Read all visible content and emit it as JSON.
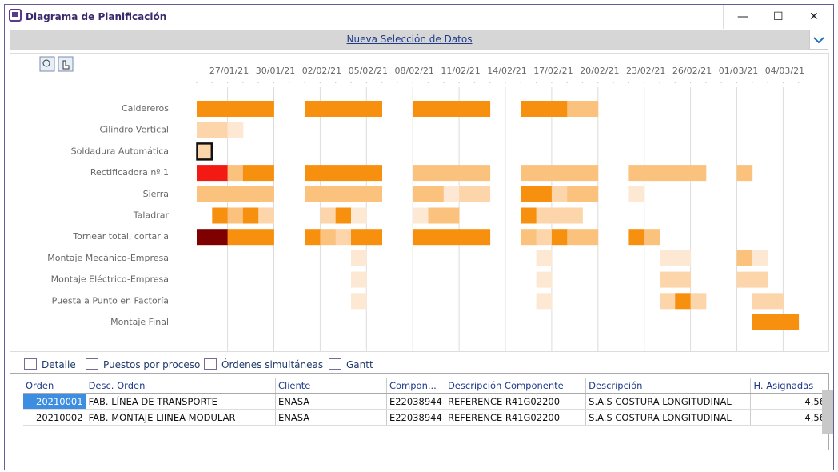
{
  "window": {
    "title": "Diagrama de  Planificación",
    "link": "Nueva Selección de Datos"
  },
  "gantt": {
    "dates": [
      "27/01/21",
      "30/01/21",
      "02/02/21",
      "05/02/21",
      "08/02/21",
      "11/02/21",
      "14/02/21",
      "17/02/21",
      "20/02/21",
      "23/02/21",
      "26/02/21",
      "01/03/21",
      "04/03/21"
    ],
    "level_colors": [
      "#fde9d3",
      "#fcd6aa",
      "#fbc27d",
      "#f7900f",
      "#f21a12",
      "#7f0000"
    ],
    "rows": [
      {
        "label": "Caldereros",
        "cells": [
          4,
          4,
          4,
          4,
          4,
          null,
          null,
          4,
          4,
          4,
          4,
          4,
          null,
          null,
          4,
          4,
          4,
          4,
          4,
          null,
          null,
          4,
          4,
          4,
          3,
          3,
          null,
          null,
          null,
          null,
          null,
          null,
          null,
          null,
          null,
          null,
          null,
          null,
          null
        ]
      },
      {
        "label": "Cilindro Vertical",
        "cells": [
          2,
          2,
          1,
          null,
          null,
          null,
          null,
          null,
          null,
          null,
          null,
          null,
          null,
          null,
          null,
          null,
          null,
          null,
          null,
          null,
          null,
          null,
          null,
          null,
          null,
          null,
          null,
          null,
          null,
          null,
          null,
          null,
          null,
          null,
          null,
          null,
          null,
          null,
          null
        ]
      },
      {
        "label": "Soldadura Automática",
        "cells": [
          2,
          null,
          null,
          null,
          null,
          null,
          null,
          null,
          null,
          null,
          null,
          null,
          null,
          null,
          null,
          null,
          null,
          null,
          null,
          null,
          null,
          null,
          null,
          null,
          null,
          null,
          null,
          null,
          null,
          null,
          null,
          null,
          null,
          null,
          null,
          null,
          null,
          null,
          null
        ]
      },
      {
        "label": "Rectificadora nº 1",
        "cells": [
          5,
          5,
          3,
          4,
          4,
          null,
          null,
          4,
          4,
          4,
          4,
          4,
          null,
          null,
          3,
          3,
          3,
          3,
          3,
          null,
          null,
          3,
          3,
          3,
          3,
          3,
          null,
          null,
          3,
          3,
          3,
          3,
          3,
          null,
          null,
          3,
          null,
          null,
          null
        ]
      },
      {
        "label": "Sierra",
        "cells": [
          3,
          3,
          3,
          3,
          3,
          null,
          null,
          3,
          3,
          3,
          3,
          3,
          null,
          null,
          3,
          3,
          1,
          2,
          2,
          null,
          null,
          4,
          4,
          2,
          3,
          3,
          null,
          null,
          1,
          null,
          null,
          null,
          null,
          null,
          null,
          null,
          null,
          null,
          null
        ]
      },
      {
        "label": "Taladrar",
        "cells": [
          null,
          4,
          3,
          4,
          2,
          null,
          null,
          null,
          2,
          4,
          1,
          null,
          null,
          null,
          1,
          3,
          3,
          null,
          null,
          null,
          null,
          4,
          2,
          2,
          2,
          null,
          null,
          null,
          null,
          null,
          null,
          null,
          null,
          null,
          null,
          null,
          null,
          null,
          null
        ]
      },
      {
        "label": "Tornear total, cortar a",
        "cells": [
          6,
          6,
          4,
          4,
          4,
          null,
          null,
          4,
          3,
          2,
          4,
          4,
          null,
          null,
          4,
          4,
          4,
          4,
          4,
          null,
          null,
          3,
          2,
          4,
          3,
          3,
          null,
          null,
          4,
          3,
          null,
          null,
          null,
          null,
          null,
          null,
          null,
          null,
          null
        ]
      },
      {
        "label": "Montaje Mecánico-Empresa",
        "cells": [
          null,
          null,
          null,
          null,
          null,
          null,
          null,
          null,
          null,
          null,
          1,
          null,
          null,
          null,
          null,
          null,
          null,
          null,
          null,
          null,
          null,
          null,
          1,
          null,
          null,
          null,
          null,
          null,
          null,
          null,
          1,
          1,
          null,
          null,
          null,
          3,
          1,
          null,
          null
        ]
      },
      {
        "label": "Montaje Eléctrico-Empresa",
        "cells": [
          null,
          null,
          null,
          null,
          null,
          null,
          null,
          null,
          null,
          null,
          1,
          null,
          null,
          null,
          null,
          null,
          null,
          null,
          null,
          null,
          null,
          null,
          1,
          null,
          null,
          null,
          null,
          null,
          null,
          null,
          2,
          2,
          null,
          null,
          null,
          2,
          2,
          null,
          null
        ]
      },
      {
        "label": "Puesta a Punto en Factoría",
        "cells": [
          null,
          null,
          null,
          null,
          null,
          null,
          null,
          null,
          null,
          null,
          1,
          null,
          null,
          null,
          null,
          null,
          null,
          null,
          null,
          null,
          null,
          null,
          1,
          null,
          null,
          null,
          null,
          null,
          null,
          null,
          2,
          4,
          2,
          null,
          null,
          null,
          2,
          2,
          null
        ]
      },
      {
        "label": "Montaje Final",
        "cells": [
          null,
          null,
          null,
          null,
          null,
          null,
          null,
          null,
          null,
          null,
          null,
          null,
          null,
          null,
          null,
          null,
          null,
          null,
          null,
          null,
          null,
          null,
          null,
          null,
          null,
          null,
          null,
          null,
          null,
          null,
          null,
          null,
          null,
          null,
          null,
          null,
          4,
          4,
          4
        ]
      }
    ]
  },
  "tabs": [
    "Detalle",
    "Puestos por proceso",
    "Órdenes simultáneas",
    "Gantt"
  ],
  "table": {
    "columns": [
      "Orden",
      "Desc. Orden",
      "Cliente",
      "Compon...",
      "Descripción Componente",
      "Descripción",
      "H. Asignadas"
    ],
    "rows": [
      [
        "20210001",
        "FAB. LÍNEA DE TRANSPORTE",
        "ENASA",
        "E22038944",
        "REFERENCE R41G02200",
        "S.A.S COSTURA LONGITUDINAL",
        "4,56"
      ],
      [
        "20210002",
        "FAB. MONTAJE LIINEA MODULAR",
        "ENASA",
        "E22038944",
        "REFERENCE R41G02200",
        "S.A.S COSTURA LONGITUDINAL",
        "4,56"
      ]
    ]
  }
}
